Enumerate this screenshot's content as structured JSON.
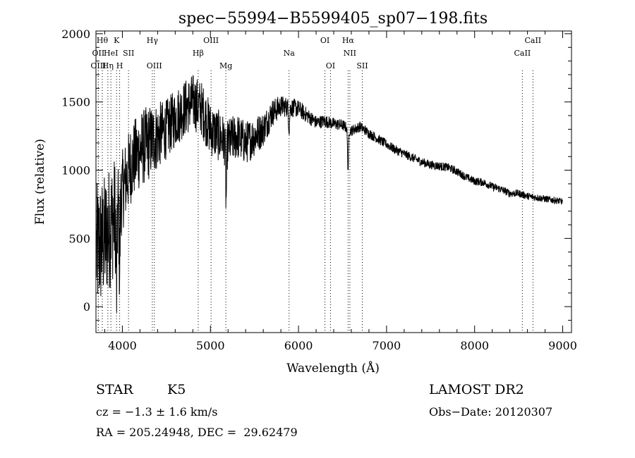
{
  "chart_data": {
    "type": "line",
    "title": "spec−55994−B5599405_sp07−198.fits",
    "xlabel": "Wavelength (Å)",
    "ylabel": "Flux (relative)",
    "xlim": [
      3700,
      9100
    ],
    "ylim": [
      -190,
      2020
    ],
    "xticks": [
      4000,
      5000,
      6000,
      7000,
      8000,
      9000
    ],
    "yticks": [
      0,
      500,
      1000,
      1500,
      2000
    ],
    "grid": false,
    "line_color": "#000000",
    "continuum": {
      "x": [
        3700,
        3800,
        3900,
        4000,
        4100,
        4200,
        4300,
        4400,
        4500,
        4600,
        4700,
        4800,
        4900,
        5000,
        5100,
        5200,
        5300,
        5400,
        5500,
        5600,
        5700,
        5800,
        5900,
        6000,
        6100,
        6200,
        6300,
        6400,
        6500,
        6600,
        6700,
        6800,
        6900,
        7000,
        7100,
        7200,
        7300,
        7400,
        7500,
        7600,
        7700,
        7800,
        7900,
        8000,
        8100,
        8200,
        8300,
        8400,
        8500,
        8600,
        8700,
        8800,
        8900,
        9000
      ],
      "y": [
        400,
        500,
        650,
        850,
        1050,
        1150,
        1200,
        1250,
        1300,
        1380,
        1450,
        1500,
        1450,
        1300,
        1250,
        1200,
        1250,
        1200,
        1250,
        1300,
        1420,
        1470,
        1460,
        1450,
        1400,
        1350,
        1360,
        1340,
        1330,
        1290,
        1320,
        1270,
        1230,
        1190,
        1150,
        1120,
        1090,
        1060,
        1040,
        1030,
        1020,
        990,
        950,
        920,
        910,
        880,
        860,
        830,
        830,
        810,
        800,
        790,
        780,
        770
      ]
    },
    "noise_amplitude": {
      "x": [
        3700,
        3900,
        4000,
        4300,
        4500,
        5000,
        5500,
        5800,
        6200,
        6600,
        7000,
        8000,
        9000
      ],
      "y": [
        500,
        450,
        300,
        280,
        220,
        200,
        150,
        80,
        50,
        40,
        35,
        30,
        25
      ]
    },
    "absorption_features": [
      {
        "x": 3934,
        "depth": 600
      },
      {
        "x": 3969,
        "depth": 500
      },
      {
        "x": 5178,
        "depth": 420
      },
      {
        "x": 5893,
        "depth": 150
      },
      {
        "x": 6563,
        "depth": 300
      }
    ],
    "line_markers": [
      {
        "x": 3727,
        "label": "OII",
        "row": 1
      },
      {
        "x": 3727,
        "label": "OIII",
        "row": 2
      },
      {
        "x": 3772,
        "label": "Hθ",
        "row": 0
      },
      {
        "x": 3835,
        "label": "Hη",
        "row": 2
      },
      {
        "x": 3870,
        "label": "HeI",
        "row": 1
      },
      {
        "x": 3934,
        "label": "K",
        "row": 0
      },
      {
        "x": 3969,
        "label": "H",
        "row": 2
      },
      {
        "x": 4070,
        "label": "SII",
        "row": 1
      },
      {
        "x": 4340,
        "label": "Hγ",
        "row": 0
      },
      {
        "x": 4363,
        "label": "OIII",
        "row": 2
      },
      {
        "x": 4861,
        "label": "Hβ",
        "row": 1
      },
      {
        "x": 5007,
        "label": "OIII",
        "row": 0
      },
      {
        "x": 5175,
        "label": "Mg",
        "row": 2
      },
      {
        "x": 5893,
        "label": "Na",
        "row": 1
      },
      {
        "x": 6300,
        "label": "OI",
        "row": 0
      },
      {
        "x": 6363,
        "label": "OI",
        "row": 2
      },
      {
        "x": 6563,
        "label": "Hα",
        "row": 0
      },
      {
        "x": 6583,
        "label": "NII",
        "row": 1
      },
      {
        "x": 6724,
        "label": "SII",
        "row": 2
      },
      {
        "x": 8542,
        "label": "CaII",
        "row": 1
      },
      {
        "x": 8662,
        "label": "CaII",
        "row": 0
      }
    ]
  },
  "footer": {
    "class_label": "STAR",
    "subclass": "K5",
    "survey": "LAMOST DR2",
    "cz": "cz = −1.3 ± 1.6 km/s",
    "obs_date": "Obs−Date: 20120307",
    "coords": "RA = 205.24948, DEC =  29.62479"
  }
}
